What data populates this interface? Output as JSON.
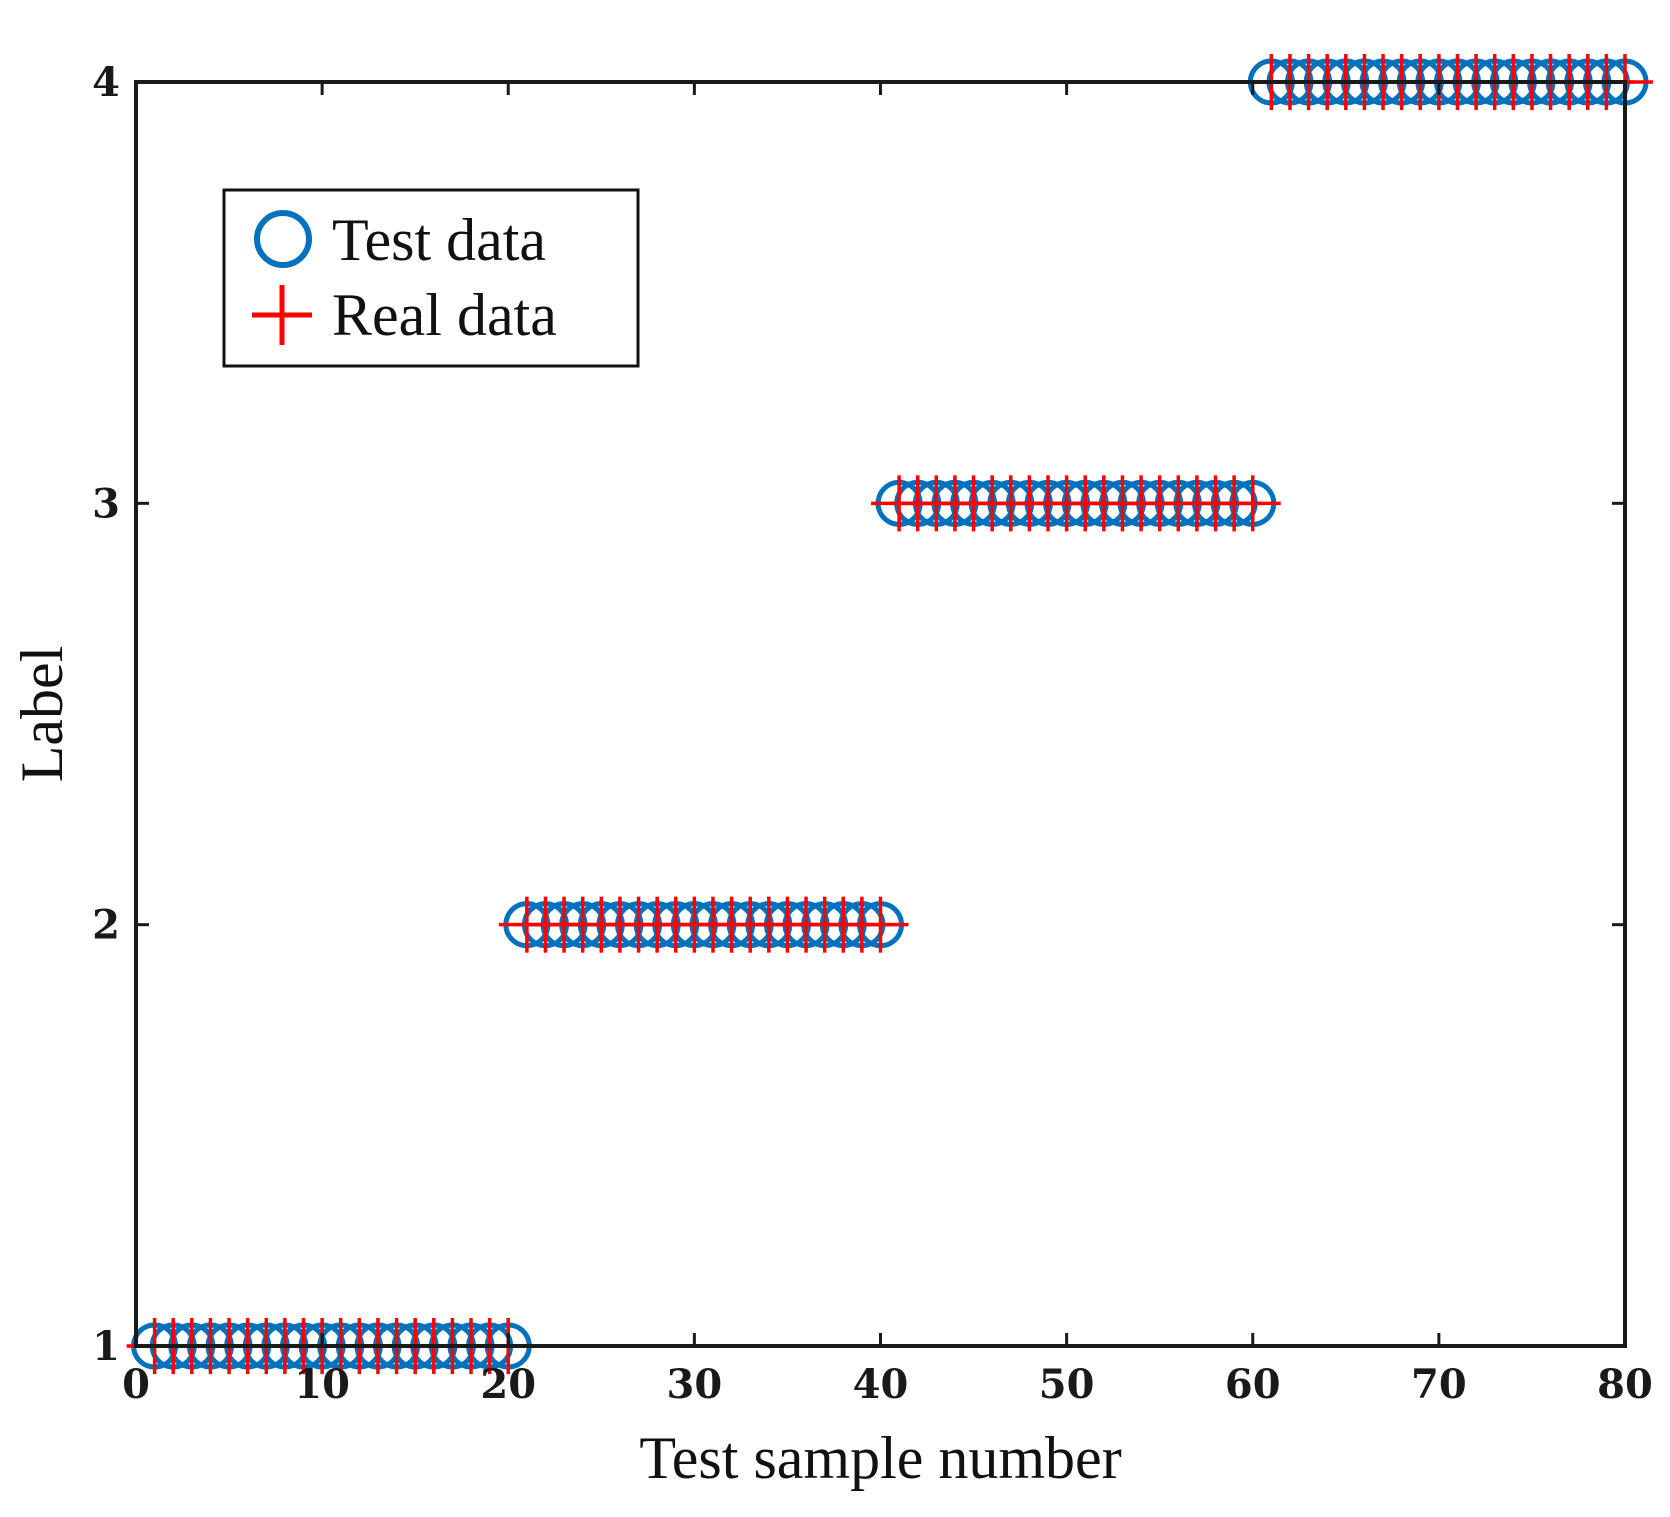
{
  "chart_data": {
    "type": "scatter",
    "title": "",
    "xlabel": "Test sample number",
    "ylabel": "Label",
    "xlim": [
      0,
      80
    ],
    "ylim": [
      1,
      4
    ],
    "xticks": [
      0,
      10,
      20,
      30,
      40,
      50,
      60,
      70,
      80
    ],
    "yticks": [
      1,
      2,
      3,
      4
    ],
    "grid": false,
    "legend_position": "top-left",
    "series": [
      {
        "name": "Test data",
        "marker": "circle",
        "color": "#0072BD",
        "segments": [
          {
            "x_start": 1,
            "x_end": 20,
            "y": 1
          },
          {
            "x_start": 21,
            "x_end": 40,
            "y": 2
          },
          {
            "x_start": 41,
            "x_end": 60,
            "y": 3
          },
          {
            "x_start": 61,
            "x_end": 80,
            "y": 4
          }
        ]
      },
      {
        "name": "Real data",
        "marker": "plus",
        "color": "#FF0000",
        "segments": [
          {
            "x_start": 1,
            "x_end": 20,
            "y": 1
          },
          {
            "x_start": 21,
            "x_end": 40,
            "y": 2
          },
          {
            "x_start": 41,
            "x_end": 60,
            "y": 3
          },
          {
            "x_start": 61,
            "x_end": 80,
            "y": 4
          }
        ]
      }
    ]
  }
}
